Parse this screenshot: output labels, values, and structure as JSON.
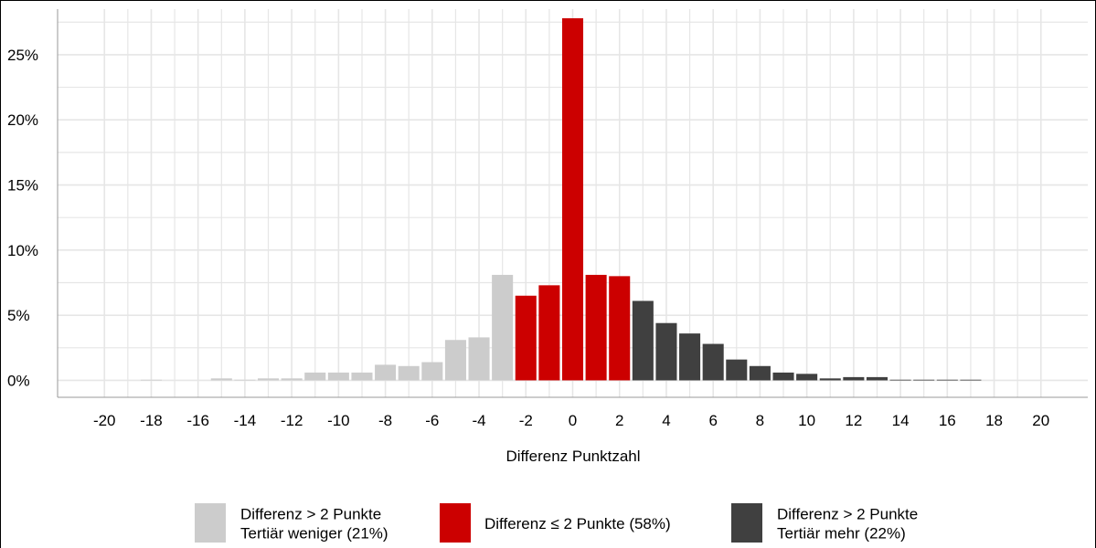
{
  "chart_data": {
    "type": "bar",
    "title": "",
    "xlabel": "Differenz Punktzahl",
    "ylabel": "",
    "xlim": [
      -22,
      22
    ],
    "ylim": [
      -1.3,
      28.5
    ],
    "x_ticks": [
      -20,
      -18,
      -16,
      -14,
      -12,
      -10,
      -8,
      -6,
      -4,
      -2,
      0,
      2,
      4,
      6,
      8,
      10,
      12,
      14,
      16,
      18,
      20
    ],
    "y_ticks": [
      0,
      5,
      10,
      15,
      20,
      25
    ],
    "y_tick_format": "percent",
    "grid": true,
    "legend_position": "bottom",
    "colors": {
      "weniger": "#cccccc",
      "gleich": "#cc0000",
      "mehr": "#404040",
      "grid": "#e6e6e6"
    },
    "series": [
      {
        "name": "Differenz > 2 Punkte Tertiär weniger (21%)",
        "legend_lines": [
          "Differenz > 2 Punkte",
          "Tertiär weniger (21%)"
        ],
        "color_key": "weniger",
        "x": [
          -18,
          -15,
          -14,
          -13,
          -12,
          -11,
          -10,
          -9,
          -8,
          -7,
          -6,
          -5,
          -4,
          -3
        ],
        "values": [
          0.05,
          0.15,
          0.05,
          0.15,
          0.15,
          0.6,
          0.6,
          0.6,
          1.2,
          1.1,
          1.4,
          3.1,
          3.3,
          8.1
        ]
      },
      {
        "name": "Differenz ≤ 2 Punkte (58%)",
        "legend_lines": [
          "Differenz ≤ 2 Punkte (58%)"
        ],
        "color_key": "gleich",
        "x": [
          -2,
          -1,
          0,
          1,
          2
        ],
        "values": [
          6.5,
          7.3,
          27.8,
          8.1,
          8.0
        ]
      },
      {
        "name": "Differenz > 2 Punkte Tertiär mehr (22%)",
        "legend_lines": [
          "Differenz > 2 Punkte",
          "Tertiär mehr (22%)"
        ],
        "color_key": "mehr",
        "x": [
          3,
          4,
          5,
          6,
          7,
          8,
          9,
          10,
          11,
          12,
          13,
          14,
          15,
          16,
          17
        ],
        "values": [
          6.1,
          4.4,
          3.6,
          2.8,
          1.6,
          1.1,
          0.6,
          0.5,
          0.15,
          0.25,
          0.25,
          0.05,
          0.05,
          0.05,
          0.05
        ]
      }
    ]
  }
}
